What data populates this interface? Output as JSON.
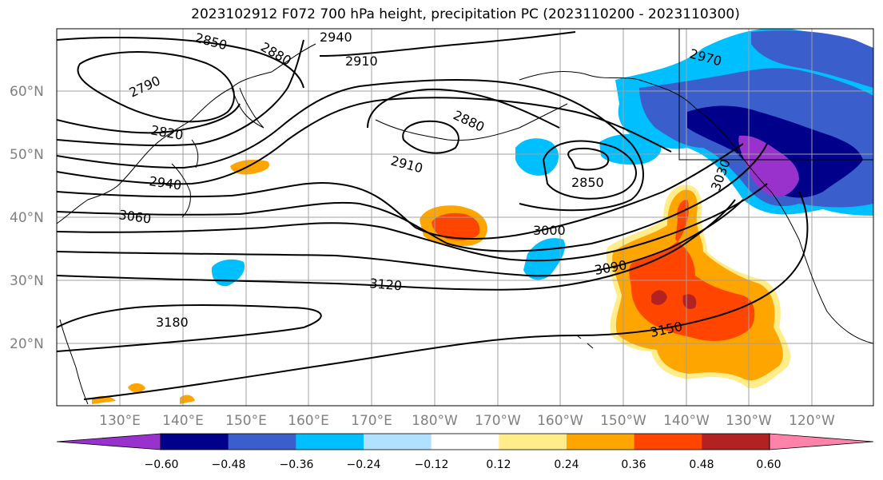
{
  "title": "2023102912 F072 700 hPa height, precipitation PC (2023110200 - 2023110300)",
  "map": {
    "lon_labels": [
      "130°E",
      "140°E",
      "150°E",
      "160°E",
      "170°E",
      "180°W",
      "170°W",
      "160°W",
      "150°W",
      "140°W",
      "130°W",
      "120°W"
    ],
    "lat_labels": [
      "60°N",
      "50°N",
      "40°N",
      "30°N",
      "20°N"
    ],
    "contour_labels": [
      "2790",
      "2820",
      "2850",
      "2880",
      "2910",
      "2940",
      "2970",
      "3000",
      "3030",
      "3060",
      "3090",
      "3120",
      "3150",
      "3180"
    ]
  },
  "colorbar": {
    "tick_labels": [
      "−0.60",
      "−0.48",
      "−0.36",
      "−0.24",
      "−0.12",
      "0.12",
      "0.24",
      "0.36",
      "0.48",
      "0.60"
    ],
    "colors": [
      "#9932cc",
      "#00008b",
      "#3a5fcd",
      "#00bfff",
      "#b0e2ff",
      "#ffffff",
      "#ffec8b",
      "#ffa500",
      "#ff4500",
      "#b22222",
      "#ff82ab"
    ]
  }
}
